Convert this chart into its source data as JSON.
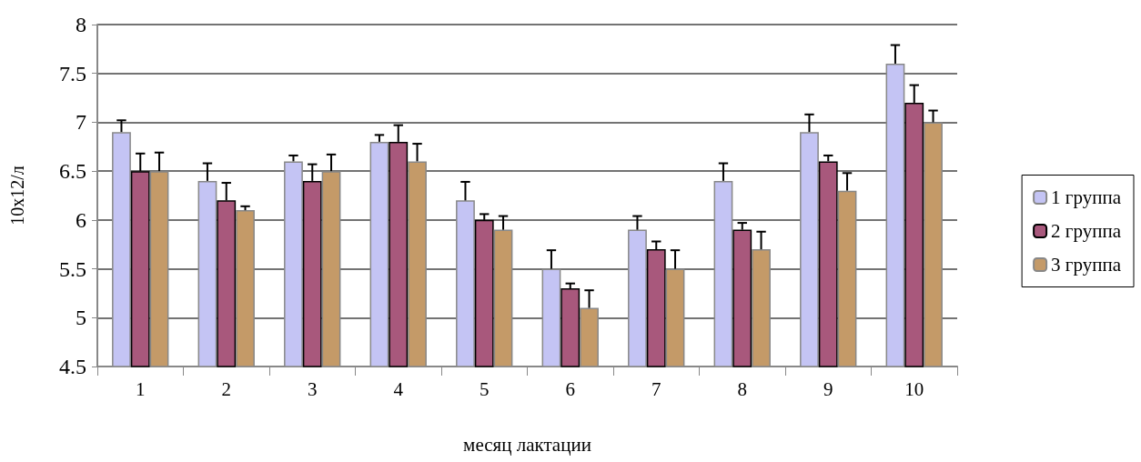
{
  "chart_data": {
    "type": "bar",
    "xlabel": "месяц лактации",
    "ylabel": "10х12/л",
    "categories": [
      "1",
      "2",
      "3",
      "4",
      "5",
      "6",
      "7",
      "8",
      "9",
      "10"
    ],
    "series": [
      {
        "name": "1 группа",
        "color": "#c4c4f4",
        "values": [
          6.9,
          6.4,
          6.6,
          6.8,
          6.2,
          5.5,
          5.9,
          6.4,
          6.9,
          7.6
        ],
        "errors": [
          [
            6.9,
            7.02
          ],
          [
            6.4,
            6.58
          ],
          [
            6.6,
            6.66
          ],
          [
            6.8,
            6.87
          ],
          [
            6.2,
            6.39
          ],
          [
            5.5,
            5.69
          ],
          [
            5.9,
            6.04
          ],
          [
            6.4,
            6.58
          ],
          [
            6.9,
            7.08
          ],
          [
            7.6,
            7.79
          ]
        ]
      },
      {
        "name": "2 группа",
        "color": "#a8587c",
        "values": [
          6.5,
          6.2,
          6.4,
          6.8,
          6.0,
          5.3,
          5.7,
          5.9,
          6.6,
          7.2
        ],
        "errors": [
          [
            6.5,
            6.68
          ],
          [
            6.2,
            6.38
          ],
          [
            6.4,
            6.57
          ],
          [
            6.8,
            6.97
          ],
          [
            6.0,
            6.06
          ],
          [
            5.3,
            5.35
          ],
          [
            5.7,
            5.78
          ],
          [
            5.9,
            5.97
          ],
          [
            6.6,
            6.66
          ],
          [
            7.2,
            7.38
          ]
        ]
      },
      {
        "name": "3 группа",
        "color": "#c49a68",
        "values": [
          6.5,
          6.1,
          6.5,
          6.6,
          5.9,
          5.1,
          5.5,
          5.7,
          6.3,
          7.0
        ],
        "errors": [
          [
            6.5,
            6.69
          ],
          [
            6.1,
            6.14
          ],
          [
            6.5,
            6.67
          ],
          [
            6.6,
            6.78
          ],
          [
            5.9,
            6.04
          ],
          [
            5.1,
            5.28
          ],
          [
            5.5,
            5.69
          ],
          [
            5.7,
            5.88
          ],
          [
            6.3,
            6.48
          ],
          [
            7.0,
            7.12
          ]
        ]
      }
    ],
    "ylim": [
      4.5,
      8
    ],
    "yticks": [
      4.5,
      5,
      5.5,
      6,
      6.5,
      7,
      7.5,
      8
    ],
    "grid": "y",
    "legend": "right"
  }
}
